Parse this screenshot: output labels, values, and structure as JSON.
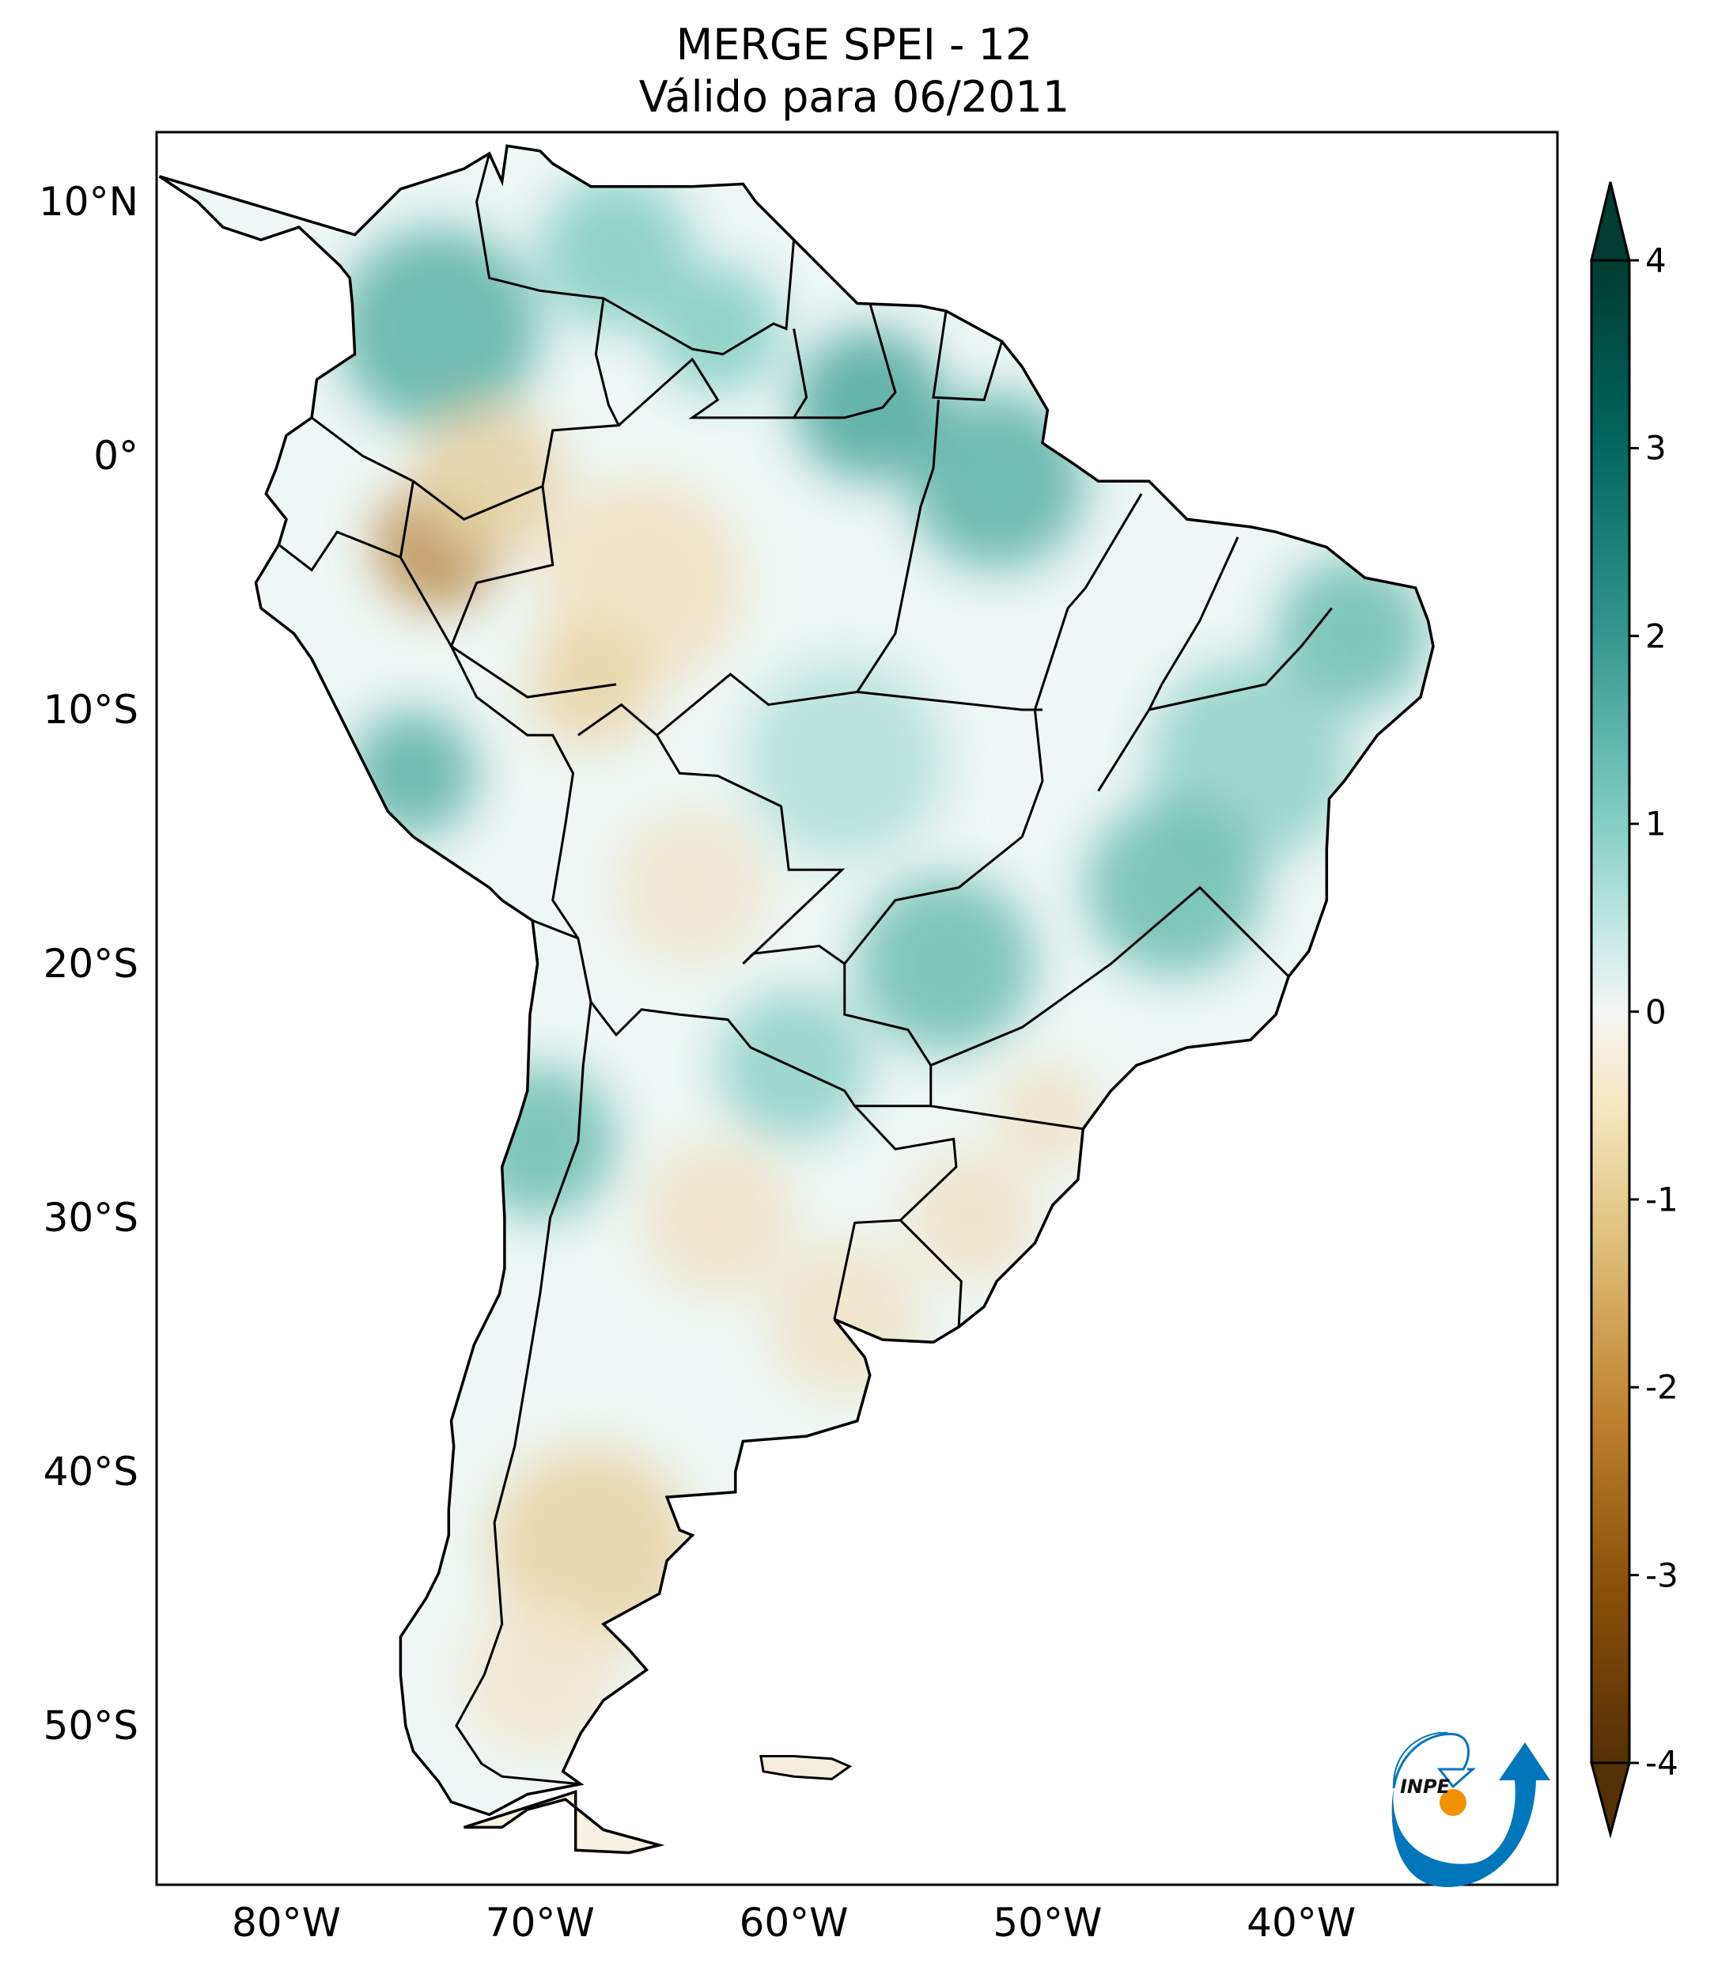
{
  "title": {
    "line1": "MERGE   SPEI - 12",
    "line2": "Válido para 06/2011"
  },
  "axes": {
    "lat_labels": [
      {
        "value": 10,
        "text": "10°N"
      },
      {
        "value": 0,
        "text": "0°"
      },
      {
        "value": -10,
        "text": "10°S"
      },
      {
        "value": -20,
        "text": "20°S"
      },
      {
        "value": -30,
        "text": "30°S"
      },
      {
        "value": -40,
        "text": "40°S"
      },
      {
        "value": -50,
        "text": "50°S"
      }
    ],
    "lon_labels": [
      {
        "value": -80,
        "text": "80°W"
      },
      {
        "value": -70,
        "text": "70°W"
      },
      {
        "value": -60,
        "text": "60°W"
      },
      {
        "value": -50,
        "text": "50°W"
      },
      {
        "value": -40,
        "text": "40°W"
      }
    ]
  },
  "colorbar": {
    "ticks": [
      "4",
      "3",
      "2",
      "1",
      "0",
      "-1",
      "-2",
      "-3",
      "-4"
    ],
    "range": [
      -4,
      4
    ],
    "colormap": "BrBG",
    "colors": {
      "max": "#003c30",
      "wet": "#35978f",
      "light_wet": "#c7eae5",
      "neutral": "#f5f5f5",
      "light_dry": "#f6e8c3",
      "dry": "#bf812d",
      "min": "#543005"
    }
  },
  "logo": {
    "text": "INPE",
    "colors": {
      "blue": "#0077bb",
      "orange": "#f39200"
    }
  }
}
